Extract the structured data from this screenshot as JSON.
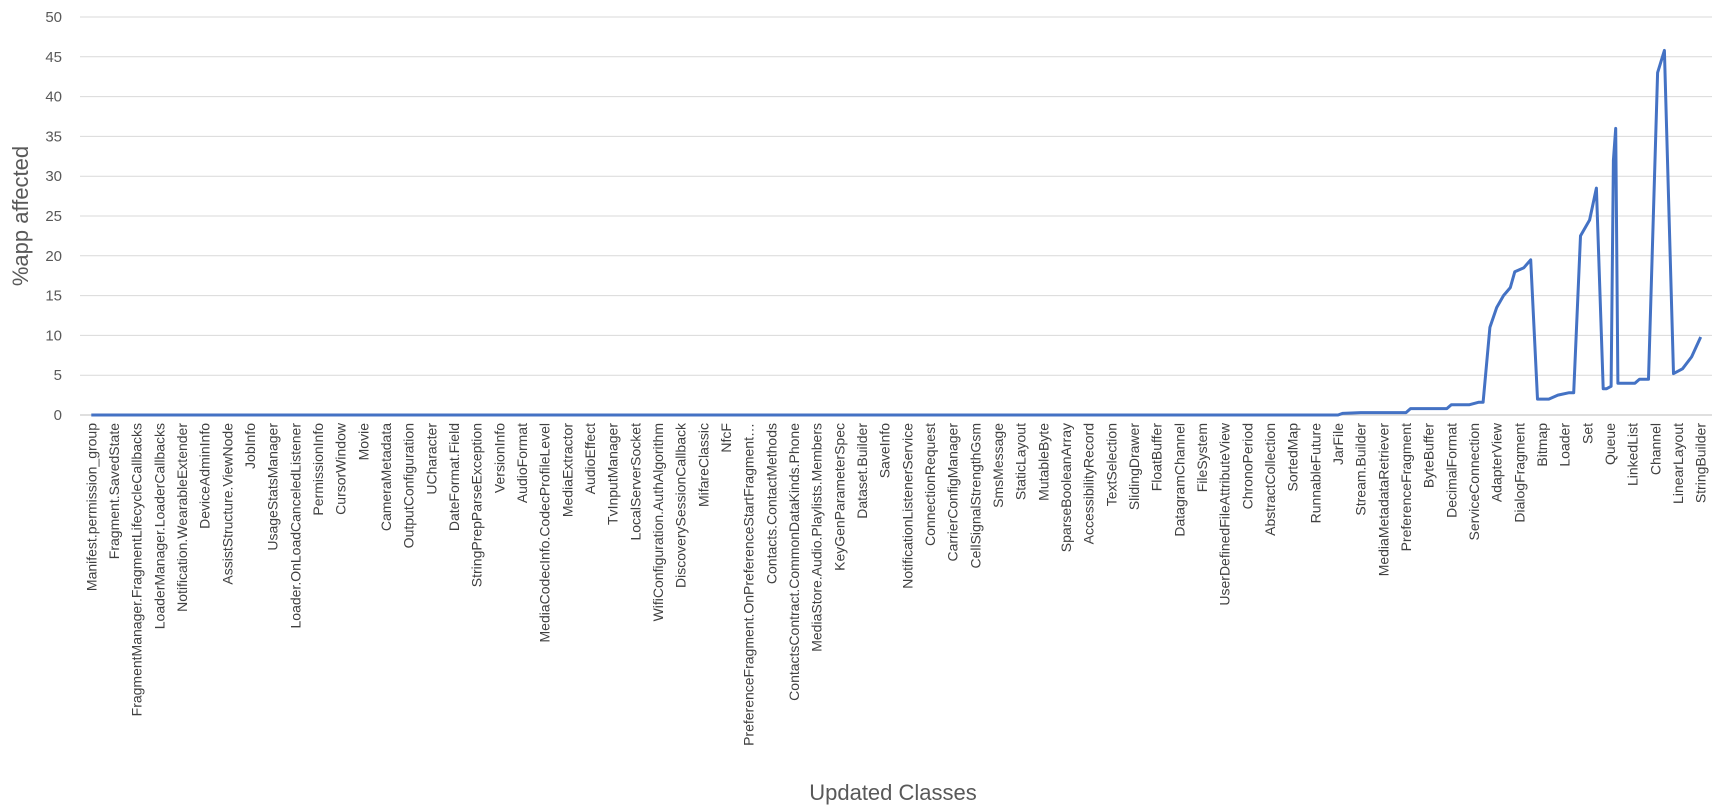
{
  "chart_data": {
    "type": "line",
    "title": "",
    "xlabel": "Updated Classes",
    "ylabel": "%app affected",
    "ylim": [
      0,
      50
    ],
    "yticks": [
      0,
      5,
      10,
      15,
      20,
      25,
      30,
      35,
      40,
      45,
      50
    ],
    "grid": true,
    "legend": "none",
    "colors": {
      "line": "#4472C4",
      "grid": "#D9D9D9",
      "axis": "#BFBFBF"
    },
    "categories": [
      "Manifest.permission_group",
      "Fragment.SavedState",
      "FragmentManager.FragmentLifecycleCallbacks",
      "LoaderManager.LoaderCallbacks",
      "Notification.WearableExtender",
      "DeviceAdminInfo",
      "AssistStructure.ViewNode",
      "JobInfo",
      "UsageStatsManager",
      "Loader.OnLoadCanceledListener",
      "PermissionInfo",
      "CursorWindow",
      "Movie",
      "CameraMetadata",
      "OutputConfiguration",
      "UCharacter",
      "DateFormat.Field",
      "StringPrepParseException",
      "VersionInfo",
      "AudioFormat",
      "MediaCodecInfo.CodecProfileLevel",
      "MediaExtractor",
      "AudioEffect",
      "TvInputManager",
      "LocalServerSocket",
      "WifiConfiguration.AuthAlgorithm",
      "DiscoverySessionCallback",
      "MifareClassic",
      "NfcF",
      "PreferenceFragment.OnPreferenceStartFragment…",
      "Contacts.ContactMethods",
      "ContactsContract.CommonDataKinds.Phone",
      "MediaStore.Audio.Playlists.Members",
      "KeyGenParameterSpec",
      "Dataset.Builder",
      "SaveInfo",
      "NotificationListenerService",
      "ConnectionRequest",
      "CarrierConfigManager",
      "CellSignalStrengthGsm",
      "SmsMessage",
      "StaticLayout",
      "MutableByte",
      "SparseBooleanArray",
      "AccessibilityRecord",
      "TextSelection",
      "SlidingDrawer",
      "FloatBuffer",
      "DatagramChannel",
      "FileSystem",
      "UserDefinedFileAttributeView",
      "ChronoPeriod",
      "AbstractCollection",
      "SortedMap",
      "RunnableFuture",
      "JarFile",
      "Stream.Builder",
      "MediaMetadataRetriever",
      "PreferenceFragment",
      "ByteBuffer",
      "DecimalFormat",
      "ServiceConnection",
      "AdapterView",
      "DialogFragment",
      "Bitmap",
      "Loader",
      "Set",
      "Queue",
      "LinkedList",
      "Channel",
      "LinearLayout",
      "StringBuilder"
    ],
    "x": [
      0,
      1,
      2,
      3,
      4,
      5,
      6,
      7,
      8,
      9,
      10,
      11,
      12,
      13,
      14,
      15,
      16,
      17,
      18,
      19,
      20,
      21,
      22,
      23,
      24,
      25,
      26,
      27,
      28,
      29,
      30,
      31,
      32,
      33,
      34,
      35,
      36,
      37,
      38,
      39,
      40,
      41,
      42,
      43,
      44,
      45,
      46,
      47,
      48,
      49,
      50,
      51,
      52,
      53,
      54,
      55,
      55.2,
      56,
      57,
      58,
      58.2,
      59,
      59.8,
      60,
      60.8,
      61.2,
      61.4,
      61.7,
      62,
      62.3,
      62.6,
      62.8,
      63.2,
      63.5,
      63.8,
      64.1,
      64.3,
      64.7,
      65.2,
      65.4,
      65.7,
      66,
      66.1,
      66.4,
      66.7,
      66.85,
      67.05,
      67.15,
      67.25,
      67.35,
      67.8,
      68.1,
      68.3,
      68.7,
      69.1,
      69.4,
      69.8,
      70.2,
      70.6,
      71
    ],
    "series": [
      {
        "values": [
          0,
          0,
          0,
          0,
          0,
          0,
          0,
          0,
          0,
          0,
          0,
          0,
          0,
          0,
          0,
          0,
          0,
          0,
          0,
          0,
          0,
          0,
          0,
          0,
          0,
          0,
          0,
          0,
          0,
          0,
          0,
          0,
          0,
          0,
          0,
          0,
          0,
          0,
          0,
          0,
          0,
          0,
          0,
          0,
          0,
          0,
          0,
          0,
          0,
          0,
          0,
          0,
          0,
          0,
          0,
          0,
          0.2,
          0.3,
          0.3,
          0.3,
          0.8,
          0.8,
          0.8,
          1.3,
          1.3,
          1.6,
          1.6,
          11,
          13.5,
          15,
          16,
          18,
          18.5,
          19.5,
          2,
          2,
          2,
          2.5,
          2.8,
          2.8,
          22.5,
          24,
          24.5,
          28.5,
          3.3,
          3.3,
          3.6,
          32,
          36,
          4,
          4,
          4,
          4.5,
          4.5,
          43,
          45.8,
          5.2,
          5.8,
          7.3,
          9.8
        ]
      }
    ]
  }
}
